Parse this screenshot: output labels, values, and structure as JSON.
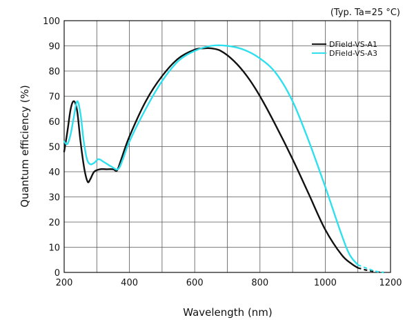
{
  "chart_data": {
    "type": "line",
    "note": "(Typ. Ta=25 °C)",
    "xlabel": "Wavelength (nm)",
    "ylabel": "Quantum efficiency (%)",
    "xlim": [
      200,
      1200
    ],
    "ylim": [
      0,
      100
    ],
    "xticks": [
      200,
      400,
      600,
      800,
      1000,
      1200
    ],
    "yticks": [
      0,
      10,
      20,
      30,
      40,
      50,
      60,
      70,
      80,
      90,
      100
    ],
    "x_minor_step": 100,
    "grid": true,
    "legend_position": "top-right",
    "series": [
      {
        "name": "DField-VS-A1",
        "color": "#111111",
        "points": [
          [
            200,
            48
          ],
          [
            210,
            56
          ],
          [
            220,
            65
          ],
          [
            230,
            68
          ],
          [
            240,
            64
          ],
          [
            250,
            52
          ],
          [
            262,
            41
          ],
          [
            272,
            36
          ],
          [
            280,
            37
          ],
          [
            292,
            40
          ],
          [
            310,
            41
          ],
          [
            330,
            41
          ],
          [
            350,
            41
          ],
          [
            362,
            40.5
          ],
          [
            375,
            45
          ],
          [
            400,
            54
          ],
          [
            450,
            68
          ],
          [
            500,
            78
          ],
          [
            550,
            85
          ],
          [
            600,
            88.5
          ],
          [
            630,
            89
          ],
          [
            650,
            89
          ],
          [
            680,
            88
          ],
          [
            720,
            84
          ],
          [
            760,
            78
          ],
          [
            800,
            70
          ],
          [
            850,
            58
          ],
          [
            900,
            45
          ],
          [
            950,
            31
          ],
          [
            1000,
            17
          ],
          [
            1050,
            7
          ],
          [
            1080,
            3.5
          ],
          [
            1100,
            1.8
          ]
        ],
        "tail_dashed": [
          [
            1100,
            1.8
          ],
          [
            1130,
            0.8
          ],
          [
            1160,
            0.2
          ],
          [
            1180,
            0
          ]
        ]
      },
      {
        "name": "DField-VS-A3",
        "color": "#2ee0ee",
        "points": [
          [
            200,
            52
          ],
          [
            210,
            51
          ],
          [
            220,
            55
          ],
          [
            230,
            62
          ],
          [
            240,
            68
          ],
          [
            250,
            63
          ],
          [
            260,
            52
          ],
          [
            270,
            45
          ],
          [
            280,
            43
          ],
          [
            292,
            43.5
          ],
          [
            305,
            45
          ],
          [
            320,
            44
          ],
          [
            345,
            42
          ],
          [
            365,
            41
          ],
          [
            380,
            45
          ],
          [
            400,
            52
          ],
          [
            450,
            65
          ],
          [
            500,
            76
          ],
          [
            550,
            84
          ],
          [
            600,
            88
          ],
          [
            650,
            90
          ],
          [
            700,
            90
          ],
          [
            750,
            88.5
          ],
          [
            800,
            85
          ],
          [
            850,
            79
          ],
          [
            900,
            68
          ],
          [
            950,
            52
          ],
          [
            1000,
            34
          ],
          [
            1050,
            15
          ],
          [
            1075,
            7
          ],
          [
            1100,
            3
          ]
        ],
        "tail_dashed": [
          [
            1100,
            3
          ],
          [
            1130,
            1.5
          ],
          [
            1160,
            0.3
          ],
          [
            1180,
            0
          ]
        ]
      }
    ]
  }
}
